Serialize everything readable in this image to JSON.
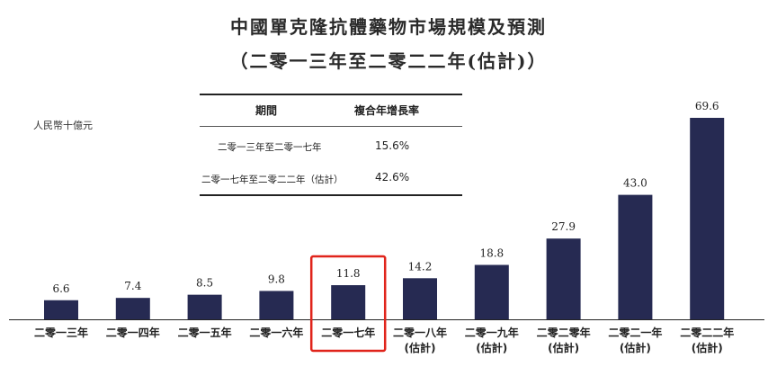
{
  "title": {
    "line1": "中國單克隆抗體藥物市場規模及預測",
    "line2": "（二零一三年至二零二二年(估計)）"
  },
  "unit_label": "人民幣十億元",
  "cagr_table": {
    "headers": [
      "期間",
      "複合年增長率"
    ],
    "rows": [
      {
        "period": "二零一三年至二零一七年",
        "rate": "15.6%"
      },
      {
        "period": "二零一七年至二零二二年（估計）",
        "rate": "42.6%"
      }
    ]
  },
  "highlight_color": "#e0241b",
  "chart_data": {
    "type": "bar",
    "title": "中國單克隆抗體藥物市場規模及預測",
    "subtitle": "（二零一三年至二零二二年(估計)）",
    "ylabel": "人民幣十億元",
    "categories": [
      [
        "二零一三年"
      ],
      [
        "二零一四年"
      ],
      [
        "二零一五年"
      ],
      [
        "二零一六年"
      ],
      [
        "二零一七年"
      ],
      [
        "二零一八年",
        "(估計)"
      ],
      [
        "二零一九年",
        "(估計)"
      ],
      [
        "二零二零年",
        "(估計)"
      ],
      [
        "二零二一年",
        "(估計)"
      ],
      [
        "二零二二年",
        "(估計)"
      ]
    ],
    "values": [
      6.6,
      7.4,
      8.5,
      9.8,
      11.8,
      14.2,
      18.8,
      27.9,
      43.0,
      69.6
    ],
    "value_labels": [
      "6.6",
      "7.4",
      "8.5",
      "9.8",
      "11.8",
      "14.2",
      "18.8",
      "27.9",
      "43.0",
      "69.6"
    ],
    "ylim": [
      0,
      69.6
    ],
    "bar_color": "#262a52",
    "highlighted_category_index": 4,
    "grid": false,
    "legend": "none"
  }
}
